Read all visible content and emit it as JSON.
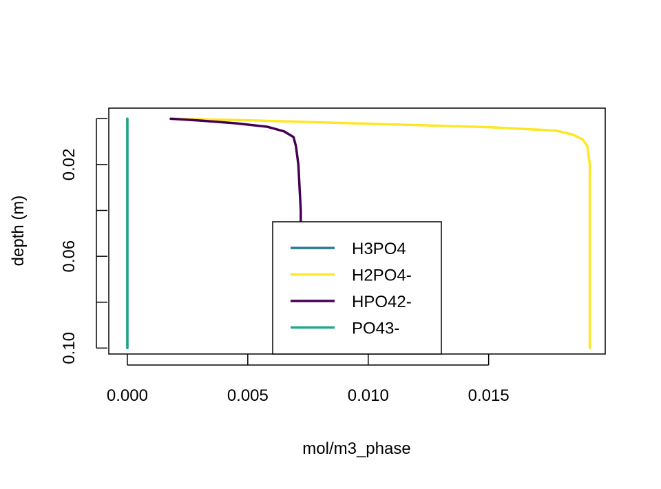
{
  "chart_data": {
    "type": "line",
    "title": "",
    "xlabel": "mol/m3_phase",
    "ylabel": "depth (m)",
    "xlim": [
      -0.00077,
      0.01984
    ],
    "ylim": [
      0.1026,
      -0.0046
    ],
    "y_reversed": true,
    "grid": false,
    "legend_placement": "bottom-center",
    "x_ticks": [
      {
        "value": 0.0,
        "label": "0.000"
      },
      {
        "value": 0.005,
        "label": "0.005"
      },
      {
        "value": 0.01,
        "label": "0.010"
      },
      {
        "value": 0.015,
        "label": "0.015"
      }
    ],
    "y_ticks": [
      {
        "value": 0.0,
        "label": ""
      },
      {
        "value": 0.02,
        "label": "0.02"
      },
      {
        "value": 0.04,
        "label": ""
      },
      {
        "value": 0.06,
        "label": "0.06"
      },
      {
        "value": 0.08,
        "label": ""
      },
      {
        "value": 0.1,
        "label": "0.10"
      }
    ],
    "series": [
      {
        "name": "H3PO4",
        "color": "#2a788e",
        "x": [
          0.0,
          0.0
        ],
        "y": [
          0.0,
          0.1
        ]
      },
      {
        "name": "H2PO4-",
        "color": "#fde725",
        "x": [
          0.0019,
          0.005,
          0.01,
          0.015,
          0.0178,
          0.0185,
          0.0189,
          0.0191,
          0.0192,
          0.0192,
          0.0192,
          0.0192
        ],
        "y": [
          0.0,
          0.0007,
          0.0022,
          0.0037,
          0.0052,
          0.007,
          0.009,
          0.012,
          0.02,
          0.04,
          0.07,
          0.1
        ]
      },
      {
        "name": "HPO42-",
        "color": "#440154",
        "x": [
          0.0018,
          0.003,
          0.0045,
          0.0058,
          0.0065,
          0.0069,
          0.007,
          0.0071,
          0.0072,
          0.0072,
          0.0072,
          0.0072
        ],
        "y": [
          0.0,
          0.0008,
          0.002,
          0.0035,
          0.0055,
          0.008,
          0.012,
          0.02,
          0.04,
          0.06,
          0.08,
          0.1
        ]
      },
      {
        "name": "PO43-",
        "color": "#22a884",
        "x": [
          0.0,
          0.0
        ],
        "y": [
          0.0,
          0.1
        ]
      }
    ]
  }
}
